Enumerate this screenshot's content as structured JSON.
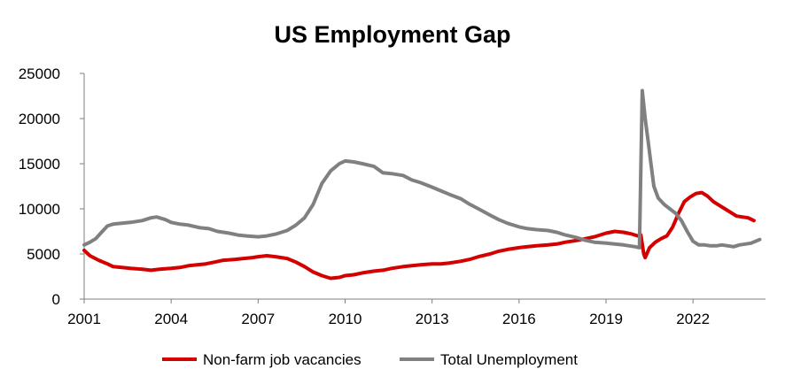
{
  "chart_data": {
    "type": "line",
    "title": "US Employment Gap",
    "xlabel": "",
    "ylabel": "",
    "xlim": [
      2001,
      2024.5
    ],
    "ylim": [
      0,
      25000
    ],
    "x_ticks": [
      2001,
      2004,
      2007,
      2010,
      2013,
      2016,
      2019,
      2022
    ],
    "y_ticks": [
      0,
      5000,
      10000,
      15000,
      20000,
      25000
    ],
    "grid": false,
    "legend_position": "bottom-center",
    "series": [
      {
        "name": "Non-farm job vacancies",
        "color": "#d40000",
        "x": [
          2001.0,
          2001.2,
          2001.5,
          2001.8,
          2002.0,
          2002.3,
          2002.6,
          2003.0,
          2003.3,
          2003.6,
          2004.0,
          2004.3,
          2004.6,
          2004.9,
          2005.2,
          2005.5,
          2005.8,
          2006.2,
          2006.5,
          2006.8,
          2007.0,
          2007.3,
          2007.6,
          2008.0,
          2008.3,
          2008.6,
          2008.9,
          2009.2,
          2009.5,
          2009.8,
          2010.0,
          2010.3,
          2010.6,
          2011.0,
          2011.3,
          2011.6,
          2012.0,
          2012.3,
          2012.6,
          2013.0,
          2013.3,
          2013.6,
          2014.0,
          2014.3,
          2014.6,
          2015.0,
          2015.3,
          2015.6,
          2016.0,
          2016.3,
          2016.6,
          2017.0,
          2017.3,
          2017.6,
          2018.0,
          2018.3,
          2018.6,
          2019.0,
          2019.3,
          2019.6,
          2019.9,
          2020.1,
          2020.2,
          2020.3,
          2020.35,
          2020.5,
          2020.7,
          2020.9,
          2021.1,
          2021.3,
          2021.5,
          2021.7,
          2021.9,
          2022.1,
          2022.3,
          2022.5,
          2022.7,
          2022.9,
          2023.1,
          2023.3,
          2023.5,
          2023.7,
          2023.9,
          2024.1
        ],
        "values": [
          5400,
          4800,
          4300,
          3900,
          3600,
          3500,
          3400,
          3300,
          3200,
          3300,
          3400,
          3500,
          3700,
          3800,
          3900,
          4100,
          4300,
          4400,
          4500,
          4600,
          4700,
          4800,
          4700,
          4500,
          4100,
          3600,
          3000,
          2600,
          2300,
          2400,
          2600,
          2700,
          2900,
          3100,
          3200,
          3400,
          3600,
          3700,
          3800,
          3900,
          3900,
          4000,
          4200,
          4400,
          4700,
          5000,
          5300,
          5500,
          5700,
          5800,
          5900,
          6000,
          6100,
          6300,
          6500,
          6700,
          6900,
          7300,
          7500,
          7400,
          7200,
          7000,
          7100,
          5000,
          4600,
          5700,
          6300,
          6700,
          7000,
          8000,
          9500,
          10800,
          11300,
          11700,
          11800,
          11400,
          10800,
          10400,
          10000,
          9600,
          9200,
          9100,
          9000,
          8700
        ]
      },
      {
        "name": "Total Unemployment",
        "color": "#808080",
        "x": [
          2001.0,
          2001.2,
          2001.4,
          2001.6,
          2001.8,
          2002.0,
          2002.3,
          2002.6,
          2003.0,
          2003.3,
          2003.5,
          2003.8,
          2004.0,
          2004.3,
          2004.6,
          2005.0,
          2005.3,
          2005.6,
          2006.0,
          2006.3,
          2006.6,
          2007.0,
          2007.3,
          2007.6,
          2008.0,
          2008.3,
          2008.6,
          2008.9,
          2009.2,
          2009.5,
          2009.8,
          2010.0,
          2010.3,
          2010.6,
          2011.0,
          2011.3,
          2011.6,
          2012.0,
          2012.3,
          2012.6,
          2013.0,
          2013.3,
          2013.6,
          2014.0,
          2014.3,
          2014.6,
          2015.0,
          2015.3,
          2015.6,
          2016.0,
          2016.3,
          2016.6,
          2017.0,
          2017.3,
          2017.6,
          2018.0,
          2018.3,
          2018.6,
          2019.0,
          2019.3,
          2019.6,
          2020.0,
          2020.15,
          2020.25,
          2020.35,
          2020.45,
          2020.55,
          2020.65,
          2020.8,
          2021.0,
          2021.2,
          2021.4,
          2021.6,
          2021.8,
          2022.0,
          2022.2,
          2022.4,
          2022.6,
          2022.8,
          2023.0,
          2023.2,
          2023.4,
          2023.6,
          2023.8,
          2024.0,
          2024.3
        ],
        "values": [
          6000,
          6300,
          6700,
          7400,
          8100,
          8300,
          8400,
          8500,
          8700,
          9000,
          9100,
          8800,
          8500,
          8300,
          8200,
          7900,
          7800,
          7500,
          7300,
          7100,
          7000,
          6900,
          7000,
          7200,
          7600,
          8200,
          9000,
          10500,
          12800,
          14200,
          15000,
          15300,
          15200,
          15000,
          14700,
          14000,
          13900,
          13700,
          13200,
          12900,
          12400,
          12000,
          11600,
          11100,
          10500,
          10000,
          9300,
          8800,
          8400,
          8000,
          7800,
          7700,
          7600,
          7400,
          7100,
          6800,
          6500,
          6300,
          6200,
          6100,
          6000,
          5800,
          5700,
          23100,
          20000,
          17500,
          15000,
          12500,
          11200,
          10500,
          10000,
          9500,
          8700,
          7500,
          6400,
          6000,
          6000,
          5900,
          5900,
          6000,
          5900,
          5800,
          6000,
          6100,
          6200,
          6600
        ]
      }
    ]
  }
}
